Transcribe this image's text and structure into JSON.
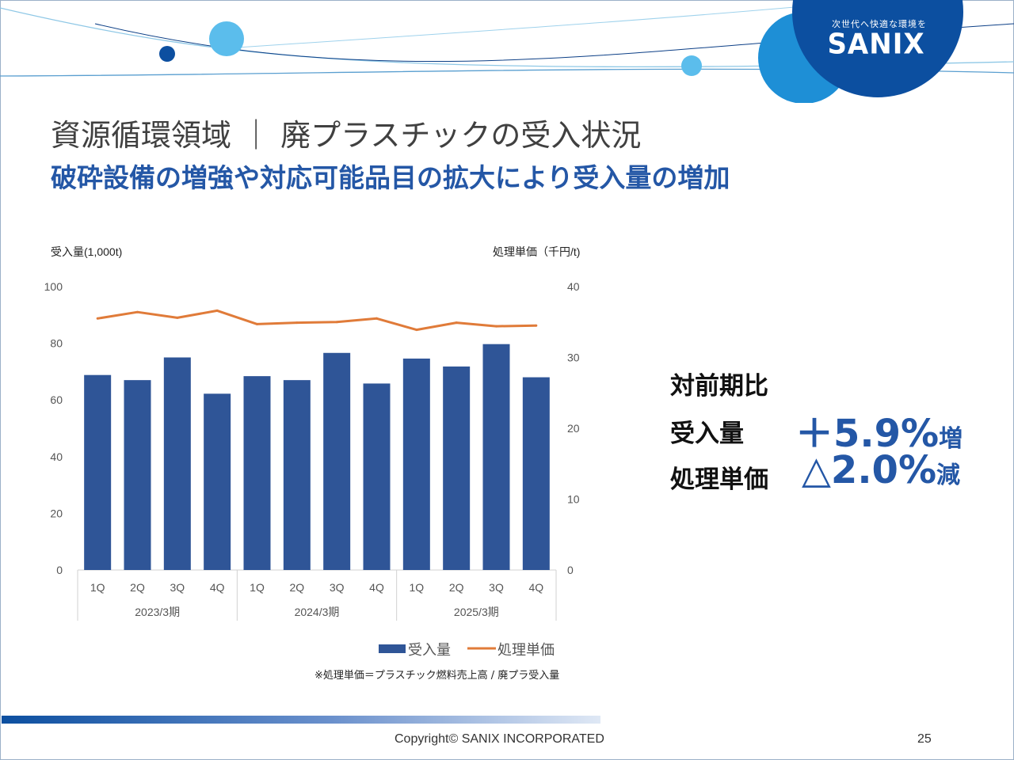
{
  "header": {
    "logo_tagline": "次世代へ快適な環境を",
    "logo_text": "SANIX",
    "title": "資源循環領域 ｜ 廃プラスチックの受入状況",
    "subtitle": "破砕設備の増強や対応可能品目の拡大により受入量の増加"
  },
  "colors": {
    "bar": "#2f5597",
    "line": "#e07b39",
    "accent": "#2457a6",
    "logo_circle": "#0c4fa0",
    "logo_circle_light": "#1e8fd6",
    "bubble_light": "#5bbdec",
    "bubble_dark": "#0c4fa0"
  },
  "chart_data": {
    "type": "bar",
    "categories": [
      "1Q",
      "2Q",
      "3Q",
      "4Q",
      "1Q",
      "2Q",
      "3Q",
      "4Q",
      "1Q",
      "2Q",
      "3Q",
      "4Q"
    ],
    "groups": [
      "2023/3期",
      "2024/3期",
      "2025/3期"
    ],
    "series": [
      {
        "name": "受入量",
        "type": "bar",
        "axis": "left",
        "values": [
          68.8,
          67.0,
          75.0,
          62.2,
          68.4,
          67.0,
          76.6,
          65.8,
          74.6,
          71.8,
          79.7,
          68.0
        ]
      },
      {
        "name": "処理単価",
        "type": "line",
        "axis": "right",
        "values": [
          35.5,
          36.4,
          35.6,
          36.6,
          34.7,
          34.9,
          35.0,
          35.5,
          33.9,
          34.9,
          34.4,
          34.5
        ]
      }
    ],
    "y_left": {
      "label": "受入量(1,000t)",
      "ticks": [
        "0",
        "20",
        "40",
        "60",
        "80",
        "100"
      ],
      "ylim": [
        0,
        100
      ]
    },
    "y_right": {
      "label": "処理単価（千円/t)",
      "ticks": [
        "0",
        "10",
        "20",
        "30",
        "40"
      ],
      "ylim": [
        0,
        40
      ]
    },
    "legend": {
      "bar_label": "受入量",
      "line_label": "処理単価",
      "position": "bottom"
    },
    "grid": false
  },
  "note": "※処理単価＝プラスチック燃料売上高 / 廃プラ受入量",
  "kpi": {
    "heading": "対前期比",
    "label_1": "受入量",
    "value_1": "＋5.9%",
    "suffix_1": "増",
    "label_2": "処理単価",
    "value_2": "△2.0%",
    "suffix_2": "減"
  },
  "footer": {
    "copyright": "Copyright©  SANIX INCORPORATED",
    "page_number": "25"
  }
}
